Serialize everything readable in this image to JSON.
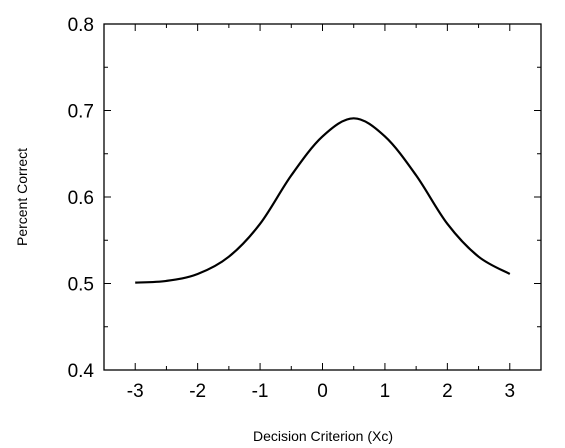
{
  "chart_data": {
    "type": "line",
    "title": "",
    "xlabel": "Decision Criterion (Xc)",
    "ylabel": "Percent Correct",
    "xlim": [
      -3.5,
      3.5
    ],
    "ylim": [
      0.4,
      0.8
    ],
    "x_ticks": [
      -3,
      -2,
      -1,
      0,
      1,
      2,
      3
    ],
    "x_tick_labels": [
      "-3",
      "-2",
      "-1",
      "0",
      "1",
      "2",
      "3"
    ],
    "y_ticks": [
      0.4,
      0.5,
      0.6,
      0.7,
      0.8
    ],
    "y_tick_labels": [
      "0.4",
      "0.5",
      "0.6",
      "0.7",
      "0.8"
    ],
    "grid": false,
    "legend": "none",
    "series": [
      {
        "color": "#000000",
        "x": [
          -3.0,
          -2.5,
          -2.0,
          -1.5,
          -1.0,
          -0.5,
          0.0,
          0.5,
          1.0,
          1.5,
          2.0,
          2.5,
          3.0
        ],
        "y": [
          0.501,
          0.503,
          0.511,
          0.531,
          0.569,
          0.625,
          0.67,
          0.691,
          0.67,
          0.625,
          0.569,
          0.531,
          0.511
        ]
      }
    ]
  }
}
